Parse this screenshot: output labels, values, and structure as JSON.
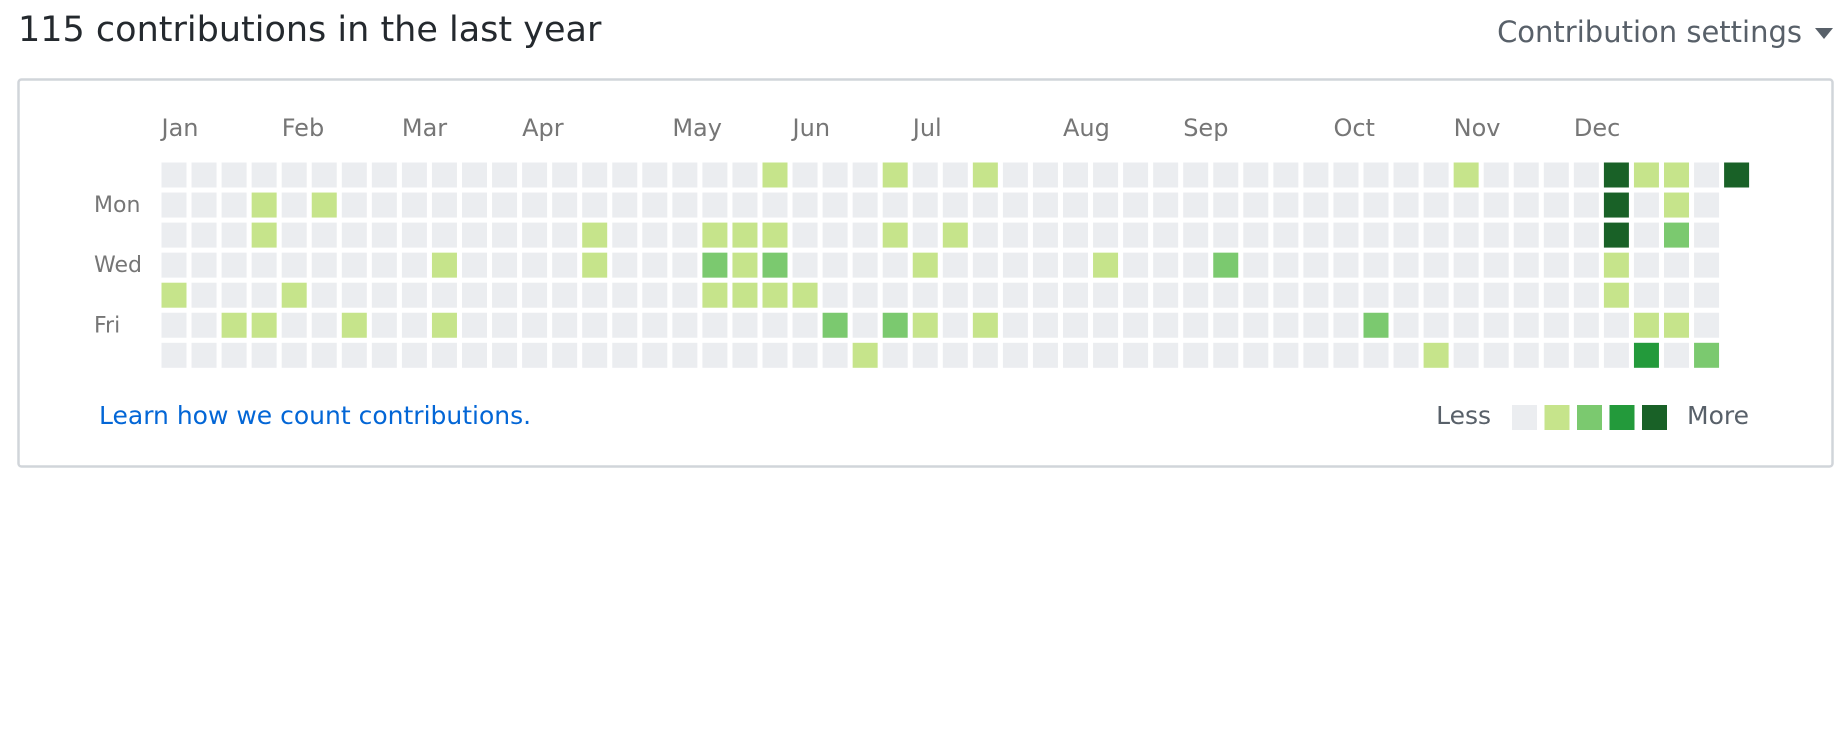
{
  "header": {
    "title": "115 contributions in the last year",
    "settings": "Contribution settings"
  },
  "graph": {
    "months": [
      "Jan",
      "Feb",
      "Mar",
      "Apr",
      "May",
      "Jun",
      "Jul",
      "Aug",
      "Sep",
      "Oct",
      "Nov",
      "Dec"
    ],
    "days": [
      "Mon",
      "Wed",
      "Fri"
    ],
    "colors": [
      "#ebedf0",
      "#c6e48b",
      "#7bc96f",
      "#239a3b",
      "#196127"
    ],
    "levels": [
      [
        0,
        0,
        0,
        0,
        0,
        0,
        0,
        0,
        0,
        0,
        0,
        0,
        0,
        0,
        0,
        0,
        0,
        0,
        0,
        0,
        1,
        0,
        0,
        0,
        1,
        0,
        0,
        1,
        0,
        0,
        0,
        0,
        0,
        0,
        0,
        0,
        0,
        0,
        0,
        0,
        0,
        0,
        0,
        1,
        0,
        0,
        0,
        0,
        4,
        1,
        1,
        0,
        4
      ],
      [
        0,
        0,
        0,
        1,
        0,
        1,
        0,
        0,
        0,
        0,
        0,
        0,
        0,
        0,
        0,
        0,
        0,
        0,
        0,
        0,
        0,
        0,
        0,
        0,
        0,
        0,
        0,
        0,
        0,
        0,
        0,
        0,
        0,
        0,
        0,
        0,
        0,
        0,
        0,
        0,
        0,
        0,
        0,
        0,
        0,
        0,
        0,
        0,
        4,
        0,
        1,
        0,
        null
      ],
      [
        0,
        0,
        0,
        1,
        0,
        0,
        0,
        0,
        0,
        0,
        0,
        0,
        0,
        0,
        1,
        0,
        0,
        0,
        1,
        1,
        1,
        0,
        0,
        0,
        1,
        0,
        1,
        0,
        0,
        0,
        0,
        0,
        0,
        0,
        0,
        0,
        0,
        0,
        0,
        0,
        0,
        0,
        0,
        0,
        0,
        0,
        0,
        0,
        4,
        0,
        2,
        0,
        null
      ],
      [
        0,
        0,
        0,
        0,
        0,
        0,
        0,
        0,
        0,
        1,
        0,
        0,
        0,
        0,
        1,
        0,
        0,
        0,
        2,
        1,
        2,
        0,
        0,
        0,
        0,
        1,
        0,
        0,
        0,
        0,
        0,
        1,
        0,
        0,
        0,
        2,
        0,
        0,
        0,
        0,
        0,
        0,
        0,
        0,
        0,
        0,
        0,
        0,
        1,
        0,
        0,
        0,
        null
      ],
      [
        1,
        0,
        0,
        0,
        1,
        0,
        0,
        0,
        0,
        0,
        0,
        0,
        0,
        0,
        0,
        0,
        0,
        0,
        1,
        1,
        1,
        1,
        0,
        0,
        0,
        0,
        0,
        0,
        0,
        0,
        0,
        0,
        0,
        0,
        0,
        0,
        0,
        0,
        0,
        0,
        0,
        0,
        0,
        0,
        0,
        0,
        0,
        0,
        1,
        0,
        0,
        0,
        null
      ],
      [
        0,
        0,
        1,
        1,
        0,
        0,
        1,
        0,
        0,
        1,
        0,
        0,
        0,
        0,
        0,
        0,
        0,
        0,
        0,
        0,
        0,
        0,
        2,
        0,
        2,
        1,
        0,
        1,
        0,
        0,
        0,
        0,
        0,
        0,
        0,
        0,
        0,
        0,
        0,
        0,
        2,
        0,
        0,
        0,
        0,
        0,
        0,
        0,
        0,
        1,
        1,
        0,
        null
      ],
      [
        0,
        0,
        0,
        0,
        0,
        0,
        0,
        0,
        0,
        0,
        0,
        0,
        0,
        0,
        0,
        0,
        0,
        0,
        0,
        0,
        0,
        0,
        0,
        1,
        0,
        0,
        0,
        0,
        0,
        0,
        0,
        0,
        0,
        0,
        0,
        0,
        0,
        0,
        0,
        0,
        0,
        0,
        1,
        0,
        0,
        0,
        0,
        0,
        0,
        3,
        0,
        2,
        null
      ]
    ]
  },
  "footer": {
    "link": "Learn how we count contributions.",
    "less": "Less",
    "more": "More"
  }
}
